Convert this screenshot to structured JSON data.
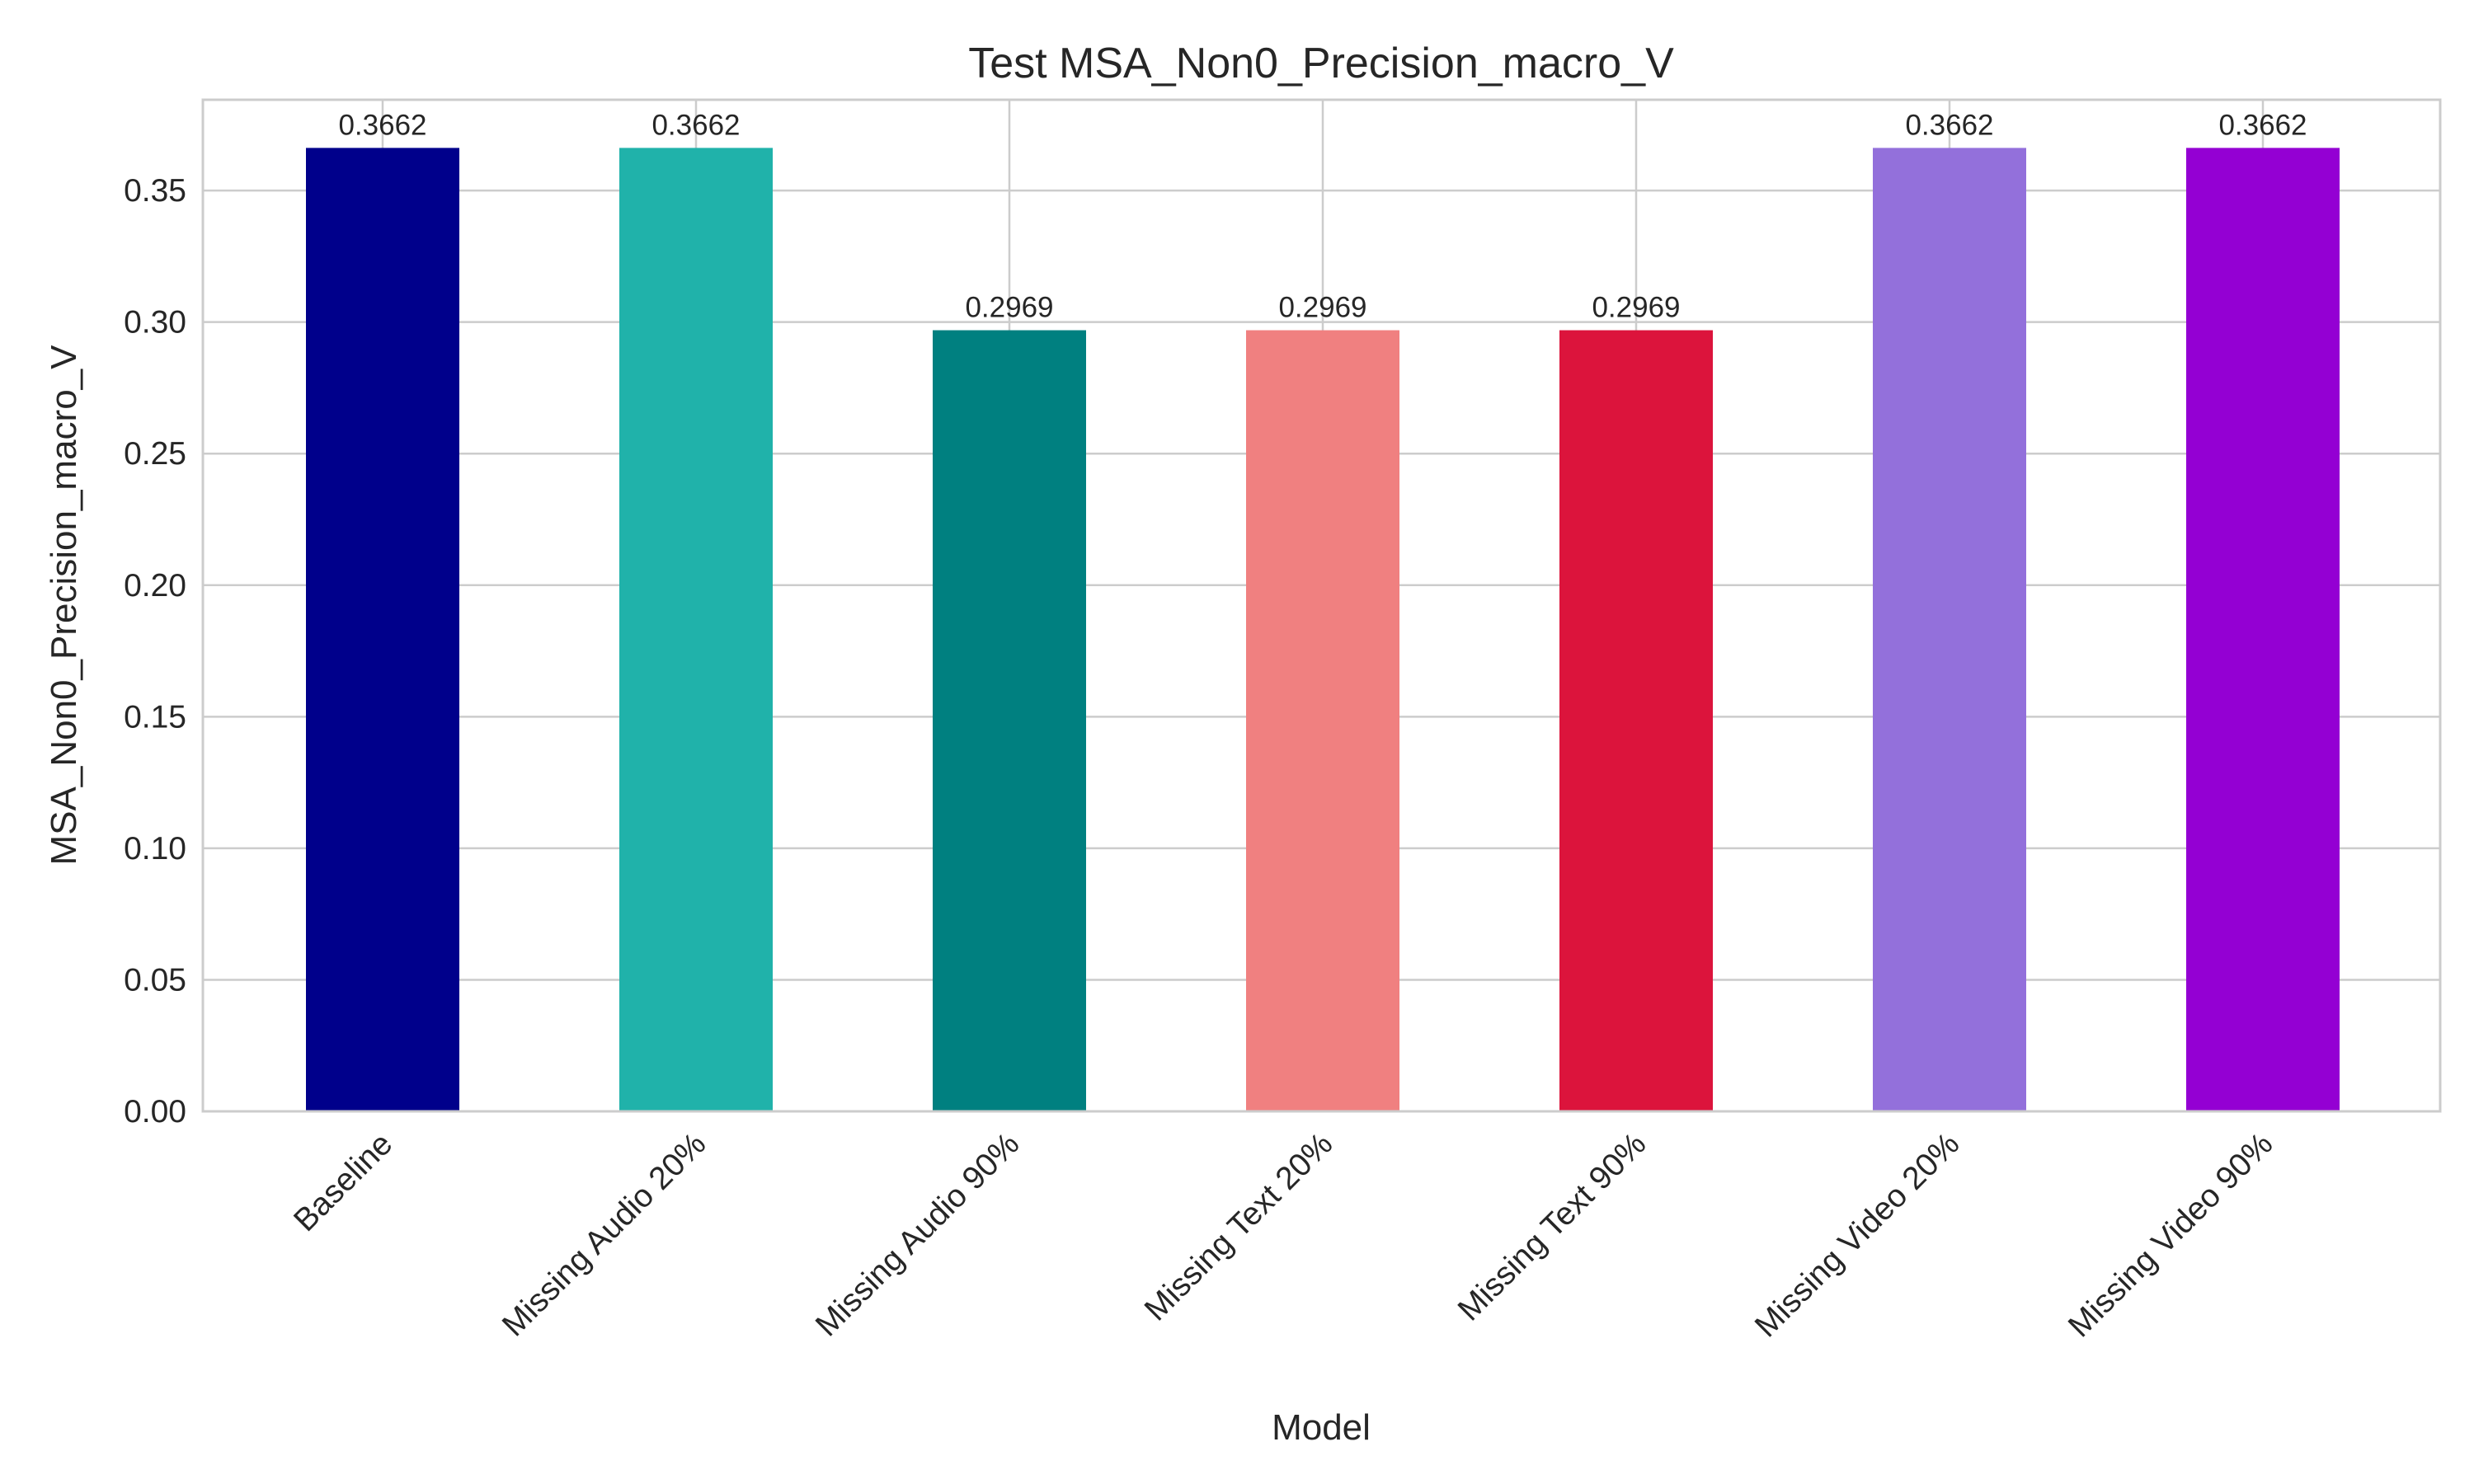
{
  "chart_data": {
    "type": "bar",
    "title": "Test MSA_Non0_Precision_macro_V",
    "xlabel": "Model",
    "ylabel": "MSA_Non0_Precision_macro_V",
    "categories": [
      "Baseline",
      "Missing Audio 20%",
      "Missing Audio 90%",
      "Missing Text 20%",
      "Missing Text 90%",
      "Missing Video 20%",
      "Missing Video 90%"
    ],
    "values": [
      0.3662,
      0.3662,
      0.2969,
      0.2969,
      0.2969,
      0.3662,
      0.3662
    ],
    "value_labels": [
      "0.3662",
      "0.3662",
      "0.2969",
      "0.2969",
      "0.2969",
      "0.3662",
      "0.3662"
    ],
    "colors": [
      "#00008b",
      "#20b2aa",
      "#008080",
      "#f08080",
      "#dc143c",
      "#9370db",
      "#9400d3"
    ],
    "yticks": [
      0.0,
      0.05,
      0.1,
      0.15,
      0.2,
      0.25,
      0.3,
      0.35
    ],
    "ytick_labels": [
      "0.00",
      "0.05",
      "0.10",
      "0.15",
      "0.20",
      "0.25",
      "0.30",
      "0.35"
    ],
    "ylim": [
      0,
      0.3845
    ],
    "grid": true,
    "legend": "none"
  }
}
